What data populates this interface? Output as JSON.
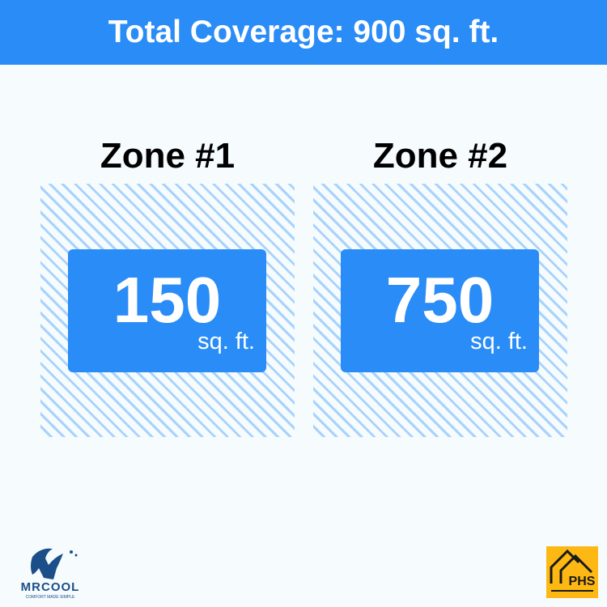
{
  "header": {
    "title": "Total Coverage: 900 sq. ft."
  },
  "zones": [
    {
      "title": "Zone #1",
      "value": "150",
      "unit": "sq. ft."
    },
    {
      "title": "Zone #2",
      "value": "750",
      "unit": "sq. ft."
    }
  ],
  "logos": {
    "left": "MRCOOL® COMFORT MADE SIMPLE",
    "right": "PHS"
  },
  "colors": {
    "accent": "#2a8cf6",
    "hatch": "#a9d3fb",
    "logo_right_bg": "#fdb813",
    "logo_left": "#1b4f8a"
  }
}
